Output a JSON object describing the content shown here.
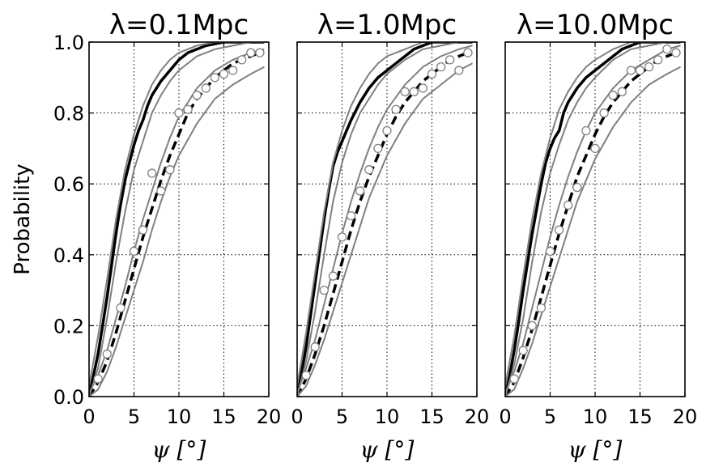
{
  "chart_data": [
    {
      "type": "line",
      "title": "λ=0.1Mpc",
      "xlabel": "ψ [°]",
      "ylabel": "Probability",
      "xlim": [
        0,
        20
      ],
      "ylim": [
        0,
        1
      ],
      "xticks": [
        "0",
        "5",
        "10",
        "15",
        "20"
      ],
      "yticks": [
        "0.0",
        "0.2",
        "0.4",
        "0.6",
        "0.8",
        "1.0"
      ],
      "grid": true,
      "series": [
        {
          "style": "solid",
          "color": "#000000",
          "x": [
            0,
            0.5,
            1,
            1.5,
            2,
            2.5,
            3,
            3.5,
            4,
            4.5,
            5,
            5.5,
            6,
            6.5,
            7,
            7.5,
            8,
            9,
            10,
            11,
            12,
            13,
            14,
            15,
            16,
            17,
            18,
            19,
            19.5
          ],
          "y": [
            0.0,
            0.06,
            0.12,
            0.2,
            0.28,
            0.37,
            0.46,
            0.54,
            0.61,
            0.66,
            0.71,
            0.75,
            0.78,
            0.82,
            0.85,
            0.87,
            0.89,
            0.92,
            0.95,
            0.97,
            0.98,
            0.99,
            0.995,
            1.0,
            1.0,
            1.0,
            1.0,
            1.0,
            1.0
          ]
        },
        {
          "style": "dashed",
          "color": "#000000",
          "x": [
            0,
            0.5,
            1,
            2,
            3,
            4,
            5,
            6,
            7,
            8,
            9,
            10,
            11,
            12,
            13,
            14,
            15,
            16,
            17,
            18,
            19,
            19.5
          ],
          "y": [
            0.0,
            0.02,
            0.04,
            0.1,
            0.18,
            0.27,
            0.36,
            0.45,
            0.53,
            0.61,
            0.68,
            0.74,
            0.8,
            0.84,
            0.87,
            0.9,
            0.92,
            0.94,
            0.95,
            0.96,
            0.97,
            0.97
          ]
        },
        {
          "style": "band",
          "color": "#808080",
          "x": [
            0,
            1,
            2,
            3,
            4,
            5,
            6,
            7,
            8,
            9,
            10,
            12,
            14,
            16,
            18,
            19.5
          ],
          "y": [
            0.03,
            0.17,
            0.33,
            0.5,
            0.64,
            0.74,
            0.82,
            0.88,
            0.92,
            0.95,
            0.97,
            0.99,
            1.0,
            1.0,
            1.0,
            1.0
          ]
        },
        {
          "style": "band",
          "color": "#808080",
          "x": [
            0,
            1,
            2,
            3,
            4,
            5,
            6,
            7,
            8,
            9,
            10,
            12,
            14,
            16,
            18,
            19.5
          ],
          "y": [
            0.0,
            0.08,
            0.22,
            0.38,
            0.52,
            0.64,
            0.72,
            0.8,
            0.85,
            0.89,
            0.92,
            0.96,
            0.98,
            0.99,
            1.0,
            1.0
          ]
        },
        {
          "style": "band",
          "color": "#808080",
          "x": [
            0,
            1,
            2,
            3,
            4,
            5,
            6,
            7,
            8,
            9,
            10,
            12,
            14,
            16,
            18,
            19.5
          ],
          "y": [
            0.01,
            0.06,
            0.13,
            0.22,
            0.31,
            0.41,
            0.5,
            0.58,
            0.66,
            0.73,
            0.79,
            0.87,
            0.92,
            0.95,
            0.97,
            0.98
          ]
        },
        {
          "style": "band",
          "color": "#808080",
          "x": [
            0,
            1,
            2,
            3,
            4,
            5,
            6,
            7,
            8,
            9,
            10,
            12,
            14,
            16,
            18,
            19.5
          ],
          "y": [
            0.0,
            0.02,
            0.07,
            0.14,
            0.22,
            0.3,
            0.38,
            0.47,
            0.55,
            0.62,
            0.68,
            0.77,
            0.84,
            0.88,
            0.91,
            0.93
          ]
        },
        {
          "style": "markers",
          "color": "#808080",
          "x": [
            1,
            2,
            3.5,
            5,
            6,
            7,
            8,
            9,
            10,
            11,
            12,
            13,
            14,
            15,
            16,
            17,
            18,
            19
          ],
          "y": [
            0.05,
            0.12,
            0.25,
            0.41,
            0.47,
            0.63,
            0.58,
            0.64,
            0.8,
            0.81,
            0.85,
            0.87,
            0.9,
            0.91,
            0.92,
            0.95,
            0.97,
            0.97
          ]
        }
      ]
    },
    {
      "type": "line",
      "title": "λ=1.0Mpc",
      "xlabel": "ψ [°]",
      "ylabel": "",
      "xlim": [
        0,
        20
      ],
      "ylim": [
        0,
        1
      ],
      "xticks": [
        "0",
        "5",
        "10",
        "15",
        "20"
      ],
      "yticks": [],
      "grid": true,
      "series": [
        {
          "style": "solid",
          "color": "#000000",
          "x": [
            0,
            0.5,
            1,
            1.5,
            2,
            2.5,
            3,
            3.5,
            4,
            4.5,
            5,
            6,
            7,
            8,
            9,
            10,
            11,
            12,
            13,
            14,
            15,
            16,
            17,
            18,
            19,
            19.5
          ],
          "y": [
            0.0,
            0.07,
            0.14,
            0.23,
            0.32,
            0.41,
            0.5,
            0.58,
            0.65,
            0.69,
            0.72,
            0.78,
            0.83,
            0.87,
            0.9,
            0.92,
            0.94,
            0.96,
            0.98,
            0.99,
            1.0,
            1.0,
            1.0,
            1.0,
            1.0,
            1.0
          ]
        },
        {
          "style": "dashed",
          "color": "#000000",
          "x": [
            0,
            1,
            2,
            3,
            4,
            5,
            6,
            7,
            8,
            9,
            10,
            11,
            12,
            13,
            14,
            15,
            16,
            17,
            18,
            19,
            19.5
          ],
          "y": [
            0.0,
            0.05,
            0.12,
            0.2,
            0.29,
            0.38,
            0.47,
            0.55,
            0.62,
            0.68,
            0.74,
            0.79,
            0.83,
            0.86,
            0.89,
            0.91,
            0.93,
            0.95,
            0.96,
            0.97,
            0.97
          ]
        },
        {
          "style": "band",
          "color": "#808080",
          "x": [
            0,
            1,
            2,
            3,
            4,
            5,
            6,
            7,
            8,
            9,
            10,
            12,
            14,
            16,
            18,
            19.5
          ],
          "y": [
            0.03,
            0.18,
            0.35,
            0.52,
            0.66,
            0.75,
            0.82,
            0.87,
            0.91,
            0.94,
            0.96,
            0.98,
            1.0,
            1.0,
            1.0,
            1.0
          ]
        },
        {
          "style": "band",
          "color": "#808080",
          "x": [
            0,
            1,
            2,
            3,
            4,
            5,
            6,
            7,
            8,
            9,
            10,
            12,
            14,
            16,
            18,
            19.5
          ],
          "y": [
            0.0,
            0.1,
            0.24,
            0.4,
            0.55,
            0.66,
            0.74,
            0.8,
            0.84,
            0.88,
            0.91,
            0.95,
            0.98,
            0.99,
            1.0,
            1.0
          ]
        },
        {
          "style": "band",
          "color": "#808080",
          "x": [
            0,
            1,
            2,
            3,
            4,
            5,
            6,
            7,
            8,
            9,
            10,
            12,
            14,
            16,
            18,
            19.5
          ],
          "y": [
            0.01,
            0.08,
            0.16,
            0.26,
            0.36,
            0.46,
            0.55,
            0.63,
            0.7,
            0.76,
            0.81,
            0.88,
            0.93,
            0.96,
            0.98,
            0.99
          ]
        },
        {
          "style": "band",
          "color": "#808080",
          "x": [
            0,
            1,
            2,
            3,
            4,
            5,
            6,
            7,
            8,
            9,
            10,
            12,
            14,
            16,
            18,
            19.5
          ],
          "y": [
            0.0,
            0.03,
            0.09,
            0.16,
            0.24,
            0.32,
            0.4,
            0.48,
            0.56,
            0.62,
            0.68,
            0.77,
            0.84,
            0.88,
            0.92,
            0.94
          ]
        },
        {
          "style": "markers",
          "color": "#808080",
          "x": [
            1,
            2,
            3,
            4,
            5,
            6,
            7,
            8,
            9,
            10,
            11,
            12,
            13,
            14,
            15,
            16,
            17,
            18,
            19
          ],
          "y": [
            0.06,
            0.14,
            0.3,
            0.34,
            0.45,
            0.51,
            0.58,
            0.64,
            0.7,
            0.75,
            0.81,
            0.86,
            0.86,
            0.87,
            0.91,
            0.93,
            0.95,
            0.92,
            0.97
          ]
        }
      ]
    },
    {
      "type": "line",
      "title": "λ=10.0Mpc",
      "xlabel": "ψ [°]",
      "ylabel": "",
      "xlim": [
        0,
        20
      ],
      "ylim": [
        0,
        1
      ],
      "xticks": [
        "0",
        "5",
        "10",
        "15",
        "20"
      ],
      "yticks": [],
      "grid": true,
      "series": [
        {
          "style": "solid",
          "color": "#000000",
          "x": [
            0,
            0.5,
            1,
            1.5,
            2,
            2.5,
            3,
            3.5,
            4,
            4.5,
            5,
            5.5,
            6,
            6.5,
            7,
            8,
            9,
            10,
            11,
            12,
            13,
            14,
            15,
            16,
            17,
            18,
            19,
            19.5
          ],
          "y": [
            0.0,
            0.06,
            0.13,
            0.21,
            0.3,
            0.38,
            0.46,
            0.53,
            0.6,
            0.66,
            0.7,
            0.73,
            0.75,
            0.8,
            0.83,
            0.87,
            0.9,
            0.92,
            0.94,
            0.96,
            0.98,
            0.99,
            1.0,
            1.0,
            1.0,
            1.0,
            1.0,
            1.0
          ]
        },
        {
          "style": "dashed",
          "color": "#000000",
          "x": [
            0,
            1,
            2,
            3,
            4,
            5,
            6,
            7,
            8,
            9,
            10,
            11,
            12,
            13,
            14,
            15,
            16,
            17,
            18,
            19,
            19.5
          ],
          "y": [
            0.0,
            0.04,
            0.11,
            0.19,
            0.28,
            0.37,
            0.46,
            0.54,
            0.62,
            0.68,
            0.74,
            0.79,
            0.83,
            0.86,
            0.89,
            0.91,
            0.93,
            0.95,
            0.96,
            0.97,
            0.97
          ]
        },
        {
          "style": "band",
          "color": "#808080",
          "x": [
            0,
            1,
            2,
            3,
            4,
            5,
            6,
            7,
            8,
            9,
            10,
            12,
            14,
            16,
            18,
            19.5
          ],
          "y": [
            0.03,
            0.17,
            0.34,
            0.5,
            0.63,
            0.73,
            0.81,
            0.86,
            0.9,
            0.93,
            0.95,
            0.98,
            1.0,
            1.0,
            1.0,
            1.0
          ]
        },
        {
          "style": "band",
          "color": "#808080",
          "x": [
            0,
            1,
            2,
            3,
            4,
            5,
            6,
            7,
            8,
            9,
            10,
            12,
            14,
            16,
            18,
            19.5
          ],
          "y": [
            0.0,
            0.09,
            0.22,
            0.38,
            0.52,
            0.63,
            0.71,
            0.78,
            0.83,
            0.87,
            0.9,
            0.95,
            0.98,
            0.99,
            1.0,
            1.0
          ]
        },
        {
          "style": "band",
          "color": "#808080",
          "x": [
            0,
            1,
            2,
            3,
            4,
            5,
            6,
            7,
            8,
            9,
            10,
            12,
            14,
            16,
            18,
            19.5
          ],
          "y": [
            0.01,
            0.07,
            0.15,
            0.25,
            0.35,
            0.45,
            0.54,
            0.62,
            0.69,
            0.75,
            0.8,
            0.87,
            0.92,
            0.95,
            0.98,
            0.99
          ]
        },
        {
          "style": "band",
          "color": "#808080",
          "x": [
            0,
            1,
            2,
            3,
            4,
            5,
            6,
            7,
            8,
            9,
            10,
            12,
            14,
            16,
            18,
            19.5
          ],
          "y": [
            0.0,
            0.02,
            0.08,
            0.15,
            0.23,
            0.31,
            0.39,
            0.47,
            0.55,
            0.61,
            0.67,
            0.76,
            0.83,
            0.88,
            0.91,
            0.93
          ]
        },
        {
          "style": "markers",
          "color": "#808080",
          "x": [
            1,
            2,
            3,
            4,
            5,
            6,
            7,
            8,
            9,
            10,
            11,
            12,
            13,
            14,
            15,
            16,
            17,
            18,
            19
          ],
          "y": [
            0.05,
            0.13,
            0.2,
            0.25,
            0.41,
            0.47,
            0.54,
            0.59,
            0.75,
            0.7,
            0.8,
            0.85,
            0.86,
            0.92,
            0.92,
            0.93,
            0.95,
            0.98,
            0.97
          ]
        }
      ]
    }
  ]
}
